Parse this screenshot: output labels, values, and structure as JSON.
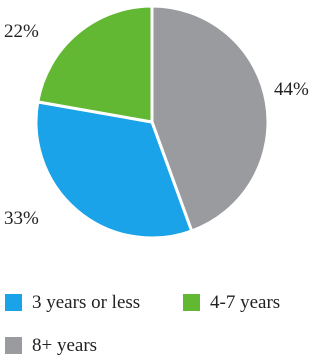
{
  "chart_data": {
    "type": "pie",
    "title": "",
    "slices": [
      {
        "label": "8+ years",
        "value": 44,
        "display": "44%",
        "color": "#9a9b9e"
      },
      {
        "label": "3 years or less",
        "value": 33,
        "display": "33%",
        "color": "#1aa3e8"
      },
      {
        "label": "4-7 years",
        "value": 22,
        "display": "22%",
        "color": "#62b832"
      }
    ],
    "start_angle_deg": 0,
    "direction": "clockwise",
    "legend_placement": "bottom"
  }
}
